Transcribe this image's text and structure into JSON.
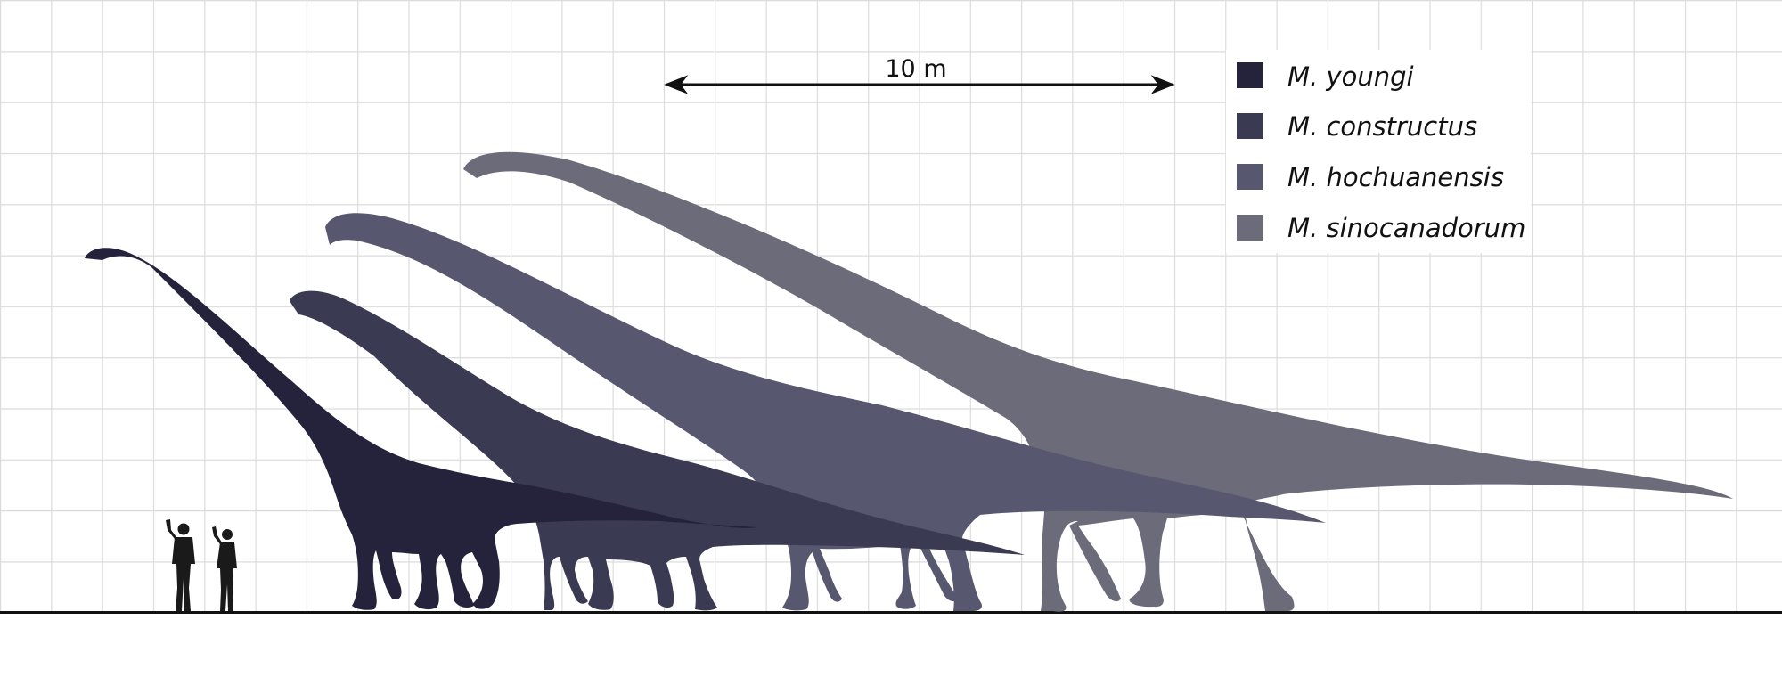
{
  "scale_bar": {
    "label": "10 m"
  },
  "legend": [
    {
      "name": "M. youngi",
      "color": "#24233b"
    },
    {
      "name": "M. constructus",
      "color": "#3a3a52"
    },
    {
      "name": "M. hochuanensis",
      "color": "#57576f"
    },
    {
      "name": "M. sinocanadorum",
      "color": "#6c6b7a"
    }
  ],
  "colors": {
    "grid": "#dcdcdc",
    "ground": "#111111",
    "humans": "#1a1a1a",
    "background": "#ffffff"
  }
}
